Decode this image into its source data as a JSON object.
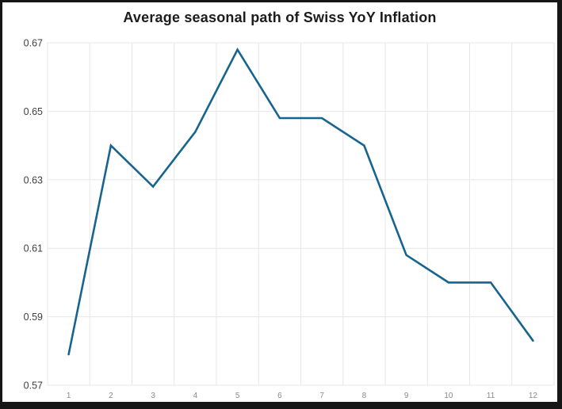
{
  "chart_data": {
    "type": "line",
    "title": "Average seasonal path of Swiss YoY Inflation",
    "x": [
      1,
      2,
      3,
      4,
      5,
      6,
      7,
      8,
      9,
      10,
      11,
      12
    ],
    "values": [
      0.579,
      0.64,
      0.628,
      0.644,
      0.668,
      0.648,
      0.648,
      0.64,
      0.608,
      0.6,
      0.6,
      0.583
    ],
    "xlabel": "",
    "ylabel": "",
    "xlim": [
      0.5,
      12.5
    ],
    "ylim": [
      0.57,
      0.67
    ],
    "yticks": [
      0.67,
      0.65,
      0.63,
      0.61,
      0.59,
      0.57
    ],
    "ytick_labels": [
      "0.67",
      "0.65",
      "0.63",
      "0.61",
      "0.59",
      "0.57"
    ],
    "xtick_labels": [
      "1",
      "2",
      "3",
      "4",
      "5",
      "6",
      "7",
      "8",
      "9",
      "10",
      "11",
      "12"
    ],
    "grid": true,
    "legend_position": "none",
    "colors": {
      "line": "#17648e",
      "grid": "#e7e7e7",
      "ytick_text": "#3f3f3f",
      "xtick_text": "#8a8a8a",
      "title_text": "#1c1c1c",
      "background": "#ffffff",
      "frame_border": "#161616"
    }
  }
}
